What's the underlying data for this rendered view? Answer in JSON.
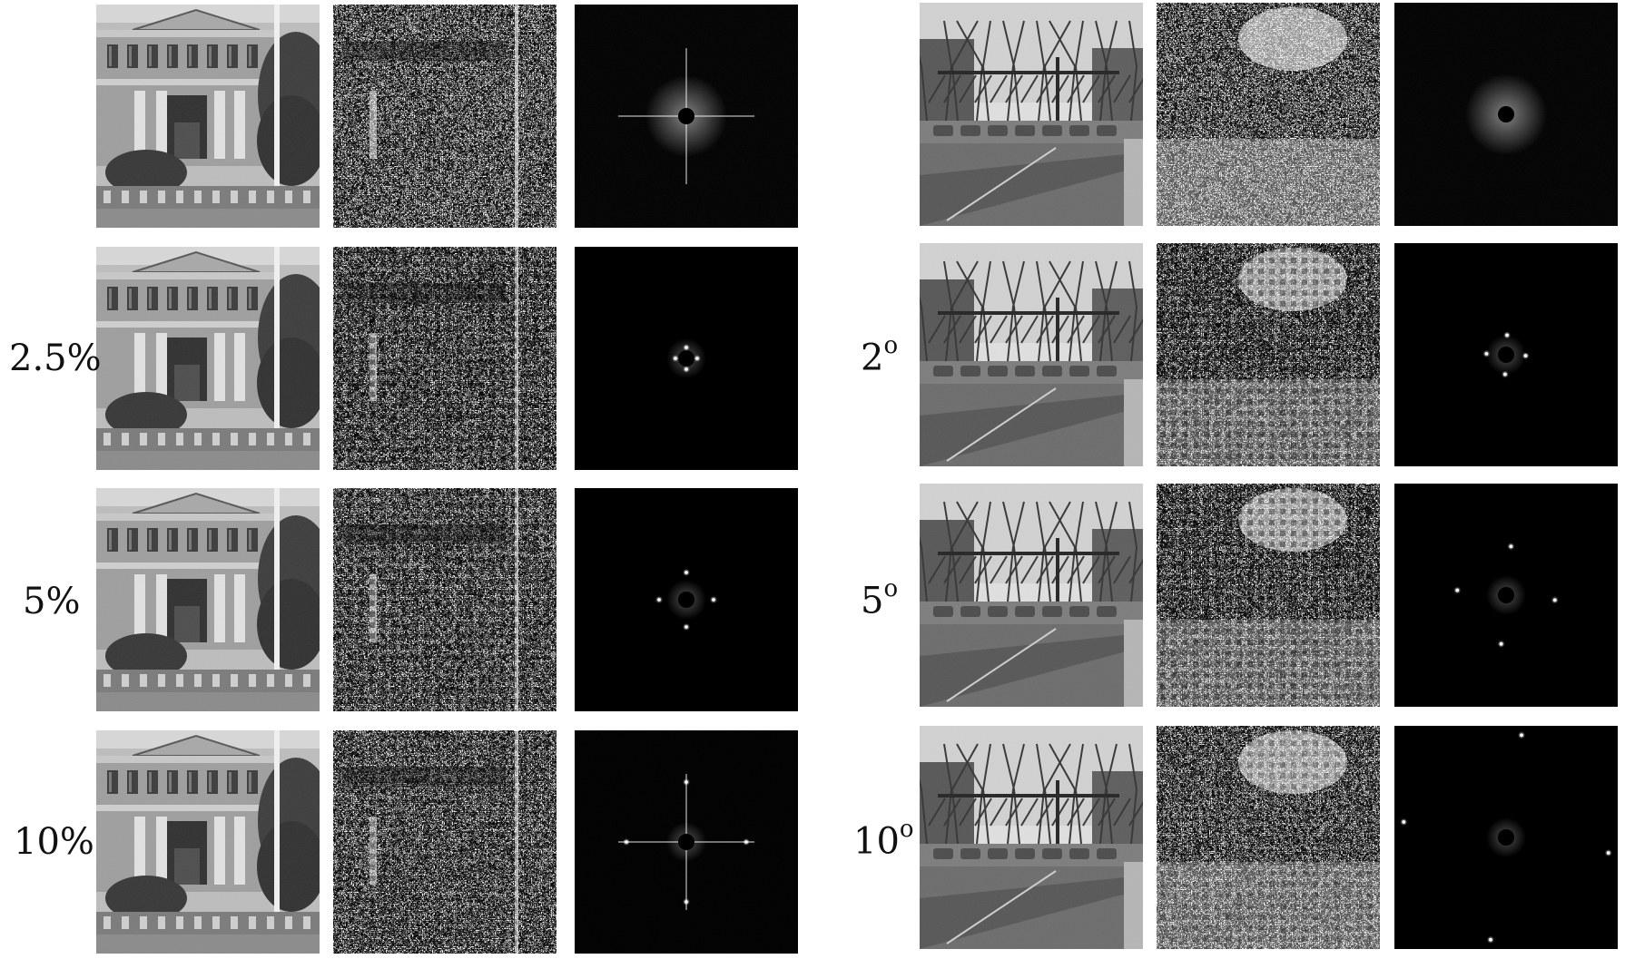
{
  "figure": {
    "left_group": {
      "row_labels": [
        "",
        "2.5%",
        "5%",
        "10%"
      ],
      "scene_icon": "building-photo",
      "dft_peaks": [
        {
          "cross": true,
          "offset": 0
        },
        {
          "cross": false,
          "offset": 0.1
        },
        {
          "cross": false,
          "offset": 0.25
        },
        {
          "cross": true,
          "offset": 0.55
        }
      ]
    },
    "right_group": {
      "row_labels": [
        {
          "value": "",
          "unit": ""
        },
        {
          "value": "2",
          "unit": "o"
        },
        {
          "value": "5",
          "unit": "o"
        },
        {
          "value": "10",
          "unit": "o"
        }
      ],
      "scene_icon": "street-photo",
      "dft_peaks": [
        {
          "cross": false,
          "offset": 0
        },
        {
          "cross": false,
          "offset": 0.18
        },
        {
          "cross": false,
          "offset": 0.45
        },
        {
          "cross": false,
          "offset": 0.95
        }
      ]
    },
    "colors": {
      "background": "#ffffff",
      "dft": "#000000",
      "text": "#111111"
    }
  }
}
